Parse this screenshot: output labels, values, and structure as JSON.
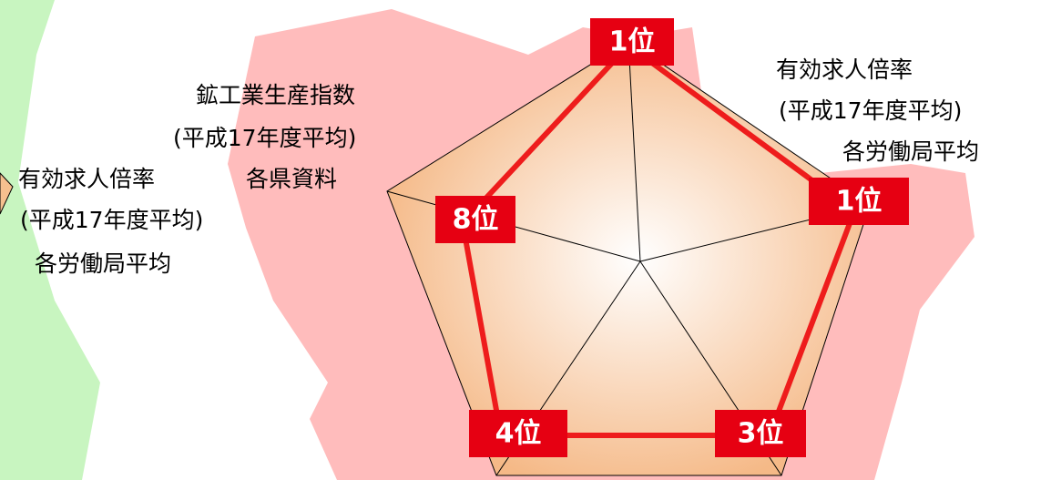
{
  "labels": {
    "far_left": [
      "有効求人倍率",
      "(平成17年度平均)",
      "各労働局平均"
    ],
    "left": [
      "鉱工業生産指数",
      "(平成17年度平均)",
      "各県資料"
    ],
    "right": [
      "有効求人倍率",
      "(平成17年度平均)",
      "各労働局平均"
    ]
  },
  "ranks": {
    "top": "1位",
    "right": "1位",
    "bottom_right": "3位",
    "bottom_left": "4位",
    "left": "8位"
  }
}
